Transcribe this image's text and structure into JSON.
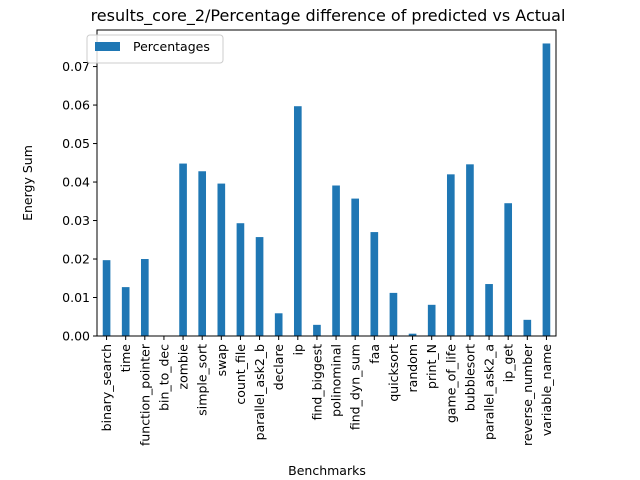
{
  "chart_data": {
    "type": "bar",
    "title": "results_core_2/Percentage difference of predicted vs Actual",
    "xlabel": "Benchmarks",
    "ylabel": "Energy Sum",
    "ylim": [
      0,
      0.0795
    ],
    "yticks": [
      "0.00",
      "0.01",
      "0.02",
      "0.03",
      "0.04",
      "0.05",
      "0.06",
      "0.07"
    ],
    "grid": false,
    "legend_position": "top-left",
    "categories": [
      "binary_search",
      "time",
      "function_pointer",
      "bin_to_dec",
      "zombie",
      "simple_sort",
      "swap",
      "count_file",
      "parallel_ask2_b",
      "declare",
      "ip",
      "find_biggest",
      "polinominal",
      "find_dyn_sum",
      "faa",
      "quicksort",
      "random",
      "print_N",
      "game_of_life",
      "bubblesort",
      "parallel_ask2_a",
      "ip_get",
      "reverse_number",
      "variable_name"
    ],
    "series": [
      {
        "name": "Percentages",
        "color": "#1f77b4",
        "values": [
          0.0197,
          0.0127,
          0.02,
          0.0,
          0.0448,
          0.0428,
          0.0396,
          0.0293,
          0.0257,
          0.0059,
          0.0597,
          0.0029,
          0.0391,
          0.0357,
          0.027,
          0.0112,
          0.0006,
          0.0081,
          0.042,
          0.0446,
          0.0135,
          0.0345,
          0.0042,
          0.076
        ]
      }
    ]
  }
}
